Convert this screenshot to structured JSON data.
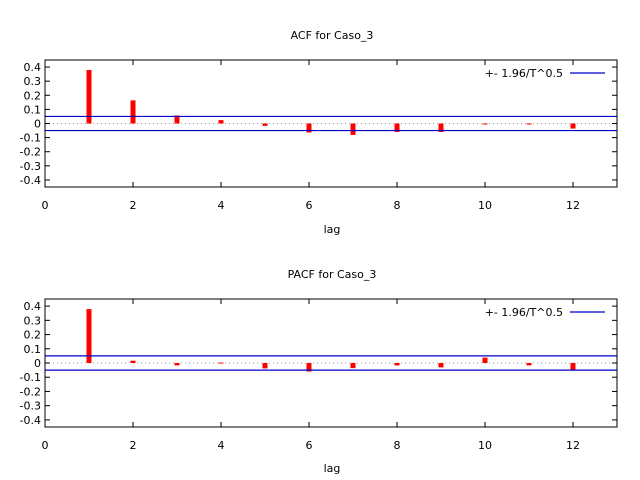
{
  "chart_data": [
    {
      "type": "bar",
      "title": "ACF for Caso_3",
      "xlabel": "lag",
      "ylabel": "",
      "xlim": [
        0,
        13
      ],
      "ylim": [
        -0.45,
        0.45
      ],
      "xticks": [
        "0",
        "2",
        "4",
        "6",
        "8",
        "10",
        "12"
      ],
      "yticks": [
        "0.4",
        "0.3",
        "0.2",
        "0.1",
        "0",
        "-0.1",
        "-0.2",
        "-0.3",
        "-0.4"
      ],
      "legend": {
        "label": "+- 1.96/T^0.5",
        "position": "top-right"
      },
      "band": 0.05,
      "lags": [
        1,
        2,
        3,
        4,
        5,
        6,
        7,
        8,
        9,
        10,
        11,
        12
      ],
      "values": [
        0.379,
        0.164,
        0.057,
        0.024,
        -0.017,
        -0.064,
        -0.081,
        -0.06,
        -0.06,
        0.0,
        0.0,
        -0.036
      ],
      "colors": {
        "bar": "#ff0000",
        "band": "#0000cc"
      }
    },
    {
      "type": "bar",
      "title": "PACF for Caso_3",
      "xlabel": "lag",
      "ylabel": "",
      "xlim": [
        0,
        13
      ],
      "ylim": [
        -0.45,
        0.45
      ],
      "xticks": [
        "0",
        "2",
        "4",
        "6",
        "8",
        "10",
        "12"
      ],
      "yticks": [
        "0.4",
        "0.3",
        "0.2",
        "0.1",
        "0",
        "-0.1",
        "-0.2",
        "-0.3",
        "-0.4"
      ],
      "legend": {
        "label": "+- 1.96/T^0.5",
        "position": "top-right"
      },
      "band": 0.05,
      "lags": [
        1,
        2,
        3,
        4,
        5,
        6,
        7,
        8,
        9,
        10,
        11,
        12
      ],
      "values": [
        0.379,
        0.016,
        -0.017,
        0.003,
        -0.038,
        -0.06,
        -0.036,
        -0.017,
        -0.031,
        0.038,
        -0.017,
        -0.047
      ],
      "colors": {
        "bar": "#ff0000",
        "band": "#0000cc"
      }
    }
  ]
}
